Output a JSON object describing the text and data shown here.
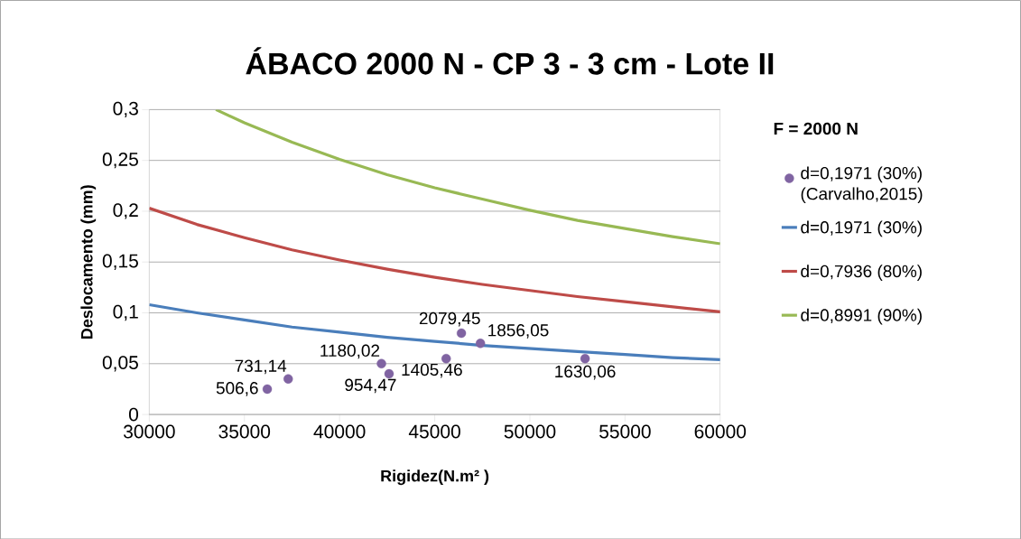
{
  "chart_data": {
    "type": "line",
    "title": "ÁBACO 2000 N - CP 3 - 3 cm - Lote II",
    "xlabel": "Rigidez(N.m² )",
    "ylabel": "Deslocamento (mm)",
    "legend_title": "F = 2000 N",
    "xlim": [
      30000,
      60000
    ],
    "ylim": [
      0,
      0.3
    ],
    "xticks": [
      30000,
      35000,
      40000,
      45000,
      50000,
      55000,
      60000
    ],
    "yticks": [
      0,
      {
        "value": 0.05,
        "label": "0,05"
      },
      {
        "value": 0.1,
        "label": "0,1"
      },
      {
        "value": 0.15,
        "label": "0,15"
      },
      {
        "value": 0.2,
        "label": "0,2"
      },
      {
        "value": 0.25,
        "label": "0,25"
      },
      {
        "value": 0.3,
        "label": "0,3"
      }
    ],
    "grid": "y",
    "legend": "right",
    "series": [
      {
        "name": "d=0,1971 (30%) (Carvalho,2015)",
        "type": "scatter",
        "marker": "circle",
        "color": "#8064a2",
        "x": [
          36200,
          37300,
          42200,
          42600,
          45600,
          46400,
          47400,
          52900
        ],
        "values": [
          0.025,
          0.035,
          0.05,
          0.04,
          0.055,
          0.08,
          0.07,
          0.055
        ]
      },
      {
        "name": "d=0,1971 (30%)",
        "color": "#4a7ebb",
        "x": [
          30000,
          32500,
          35000,
          37500,
          40000,
          42500,
          45000,
          47500,
          50000,
          52500,
          55000,
          57500,
          60000
        ],
        "values": [
          0.108,
          0.1,
          0.093,
          0.086,
          0.081,
          0.076,
          0.072,
          0.068,
          0.065,
          0.062,
          0.059,
          0.056,
          0.054
        ]
      },
      {
        "name": "d=0,7936 (80%)",
        "color": "#be4b48",
        "x": [
          30000,
          32500,
          35000,
          37500,
          40000,
          42500,
          45000,
          47500,
          50000,
          52500,
          55000,
          57500,
          60000
        ],
        "values": [
          0.203,
          0.187,
          0.174,
          0.162,
          0.152,
          0.143,
          0.135,
          0.128,
          0.122,
          0.116,
          0.111,
          0.106,
          0.101
        ]
      },
      {
        "name": "d=0,8991 (90%)",
        "color": "#98b954",
        "x": [
          33500,
          35000,
          37500,
          40000,
          42500,
          45000,
          47500,
          50000,
          52500,
          55000,
          57500,
          60000
        ],
        "values": [
          0.3,
          0.287,
          0.268,
          0.251,
          0.236,
          0.223,
          0.212,
          0.201,
          0.191,
          0.183,
          0.175,
          0.168
        ]
      }
    ],
    "annotations": [
      {
        "text": "506,6",
        "x": 36200,
        "y": 0.025
      },
      {
        "text": "731,14",
        "x": 37300,
        "y": 0.035
      },
      {
        "text": "1180,02",
        "x": 42200,
        "y": 0.05
      },
      {
        "text": "954,47",
        "x": 42600,
        "y": 0.04
      },
      {
        "text": "1405,46",
        "x": 45600,
        "y": 0.055
      },
      {
        "text": "2079,45",
        "x": 46400,
        "y": 0.08
      },
      {
        "text": "1856,05",
        "x": 47400,
        "y": 0.07
      },
      {
        "text": "1630,06",
        "x": 52900,
        "y": 0.055
      }
    ]
  }
}
